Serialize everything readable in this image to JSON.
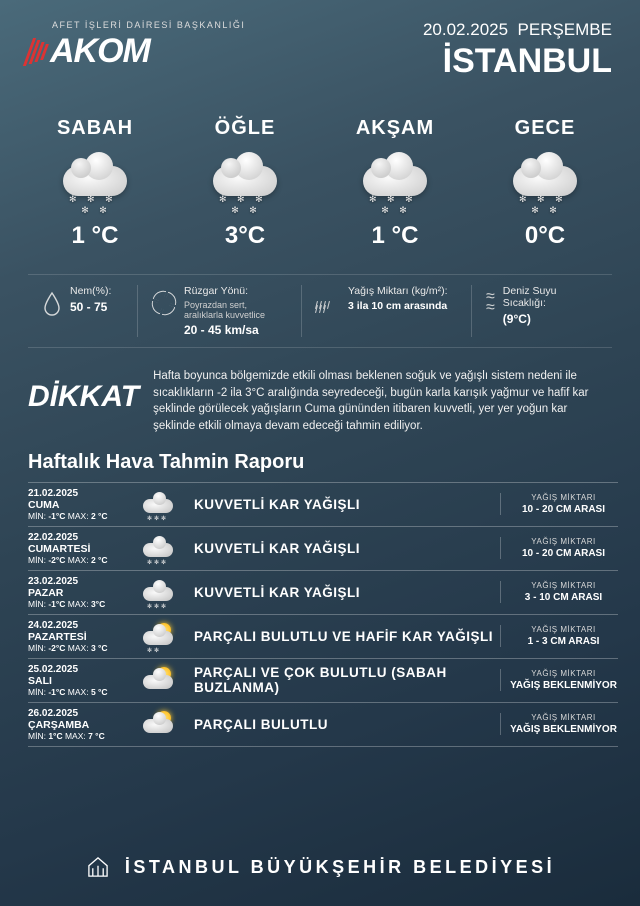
{
  "header": {
    "logo_subtitle": "AFET İŞLERİ DAİRESİ BAŞKANLIĞI",
    "logo_text": "AKOM",
    "date": "20.02.2025",
    "dayname": "PERŞEMBE",
    "city": "İSTANBUL"
  },
  "periods": [
    {
      "label": "SABAH",
      "temp": "1 °C",
      "snow": true
    },
    {
      "label": "ÖĞLE",
      "temp": "3°C",
      "snow": true
    },
    {
      "label": "AKŞAM",
      "temp": "1 °C",
      "snow": true
    },
    {
      "label": "GECE",
      "temp": "0°C",
      "snow": true
    }
  ],
  "stats": {
    "humidity": {
      "label": "Nem(%):",
      "value": "50 - 75"
    },
    "wind": {
      "label": "Rüzgar Yönü:",
      "sub": "Poyrazdan sert, aralıklarla kuvvetlice",
      "value": "20 - 45 km/sa"
    },
    "precip": {
      "label": "Yağış Miktarı (kg/m²):",
      "value": "3 ila 10 cm arasında"
    },
    "sea": {
      "label": "Deniz Suyu Sıcaklığı:",
      "value": "(9°C)"
    }
  },
  "attention": {
    "title": "DİKKAT",
    "text": "Hafta boyunca bölgemizde etkili olması beklenen soğuk ve yağışlı sistem nedeni ile sıcaklıkların -2 ila 3°C aralığında seyredeceği, bugün karla karışık yağmur ve hafif kar şeklinde görülecek yağışların Cuma gününden itibaren kuvvetli, yer yer yoğun kar şeklinde etkili olmaya devam edeceği tahmin ediliyor."
  },
  "weekly_title": "Haftalık Hava Tahmin Raporu",
  "precip_label": "YAĞIŞ MİKTARI",
  "weekly": [
    {
      "date": "21.02.2025",
      "day": "CUMA",
      "min": "-1°C",
      "max": "2 °C",
      "desc": "KUVVETLİ KAR YAĞIŞLI",
      "precip": "10 - 20 CM ARASI",
      "icon": "snow"
    },
    {
      "date": "22.02.2025",
      "day": "CUMARTESİ",
      "min": "-2°C",
      "max": "2 °C",
      "desc": "KUVVETLİ KAR YAĞIŞLI",
      "precip": "10 - 20 CM ARASI",
      "icon": "snow"
    },
    {
      "date": "23.02.2025",
      "day": "PAZAR",
      "min": "-1°C",
      "max": "3°C",
      "desc": "KUVVETLİ KAR YAĞIŞLI",
      "precip": "3 - 10 CM ARASI",
      "icon": "snow"
    },
    {
      "date": "24.02.2025",
      "day": "PAZARTESİ",
      "min": "-2°C",
      "max": "3 °C",
      "desc": "PARÇALI BULUTLU VE HAFİF KAR YAĞIŞLI",
      "precip": "1 - 3 CM ARASI",
      "icon": "sun-snow"
    },
    {
      "date": "25.02.2025",
      "day": "SALI",
      "min": "-1°C",
      "max": "5 °C",
      "desc": "PARÇALI VE ÇOK BULUTLU (SABAH BUZLANMA)",
      "precip": "YAĞIŞ BEKLENMİYOR",
      "icon": "sun-cloud"
    },
    {
      "date": "26.02.2025",
      "day": "ÇARŞAMBA",
      "min": "1°C",
      "max": "7 °C",
      "desc": "PARÇALI BULUTLU",
      "precip": "YAĞIŞ BEKLENMİYOR",
      "icon": "sun-cloud"
    }
  ],
  "footer": "İSTANBUL BÜYÜKŞEHİR BELEDİYESİ",
  "colors": {
    "stripe": "#d33"
  }
}
